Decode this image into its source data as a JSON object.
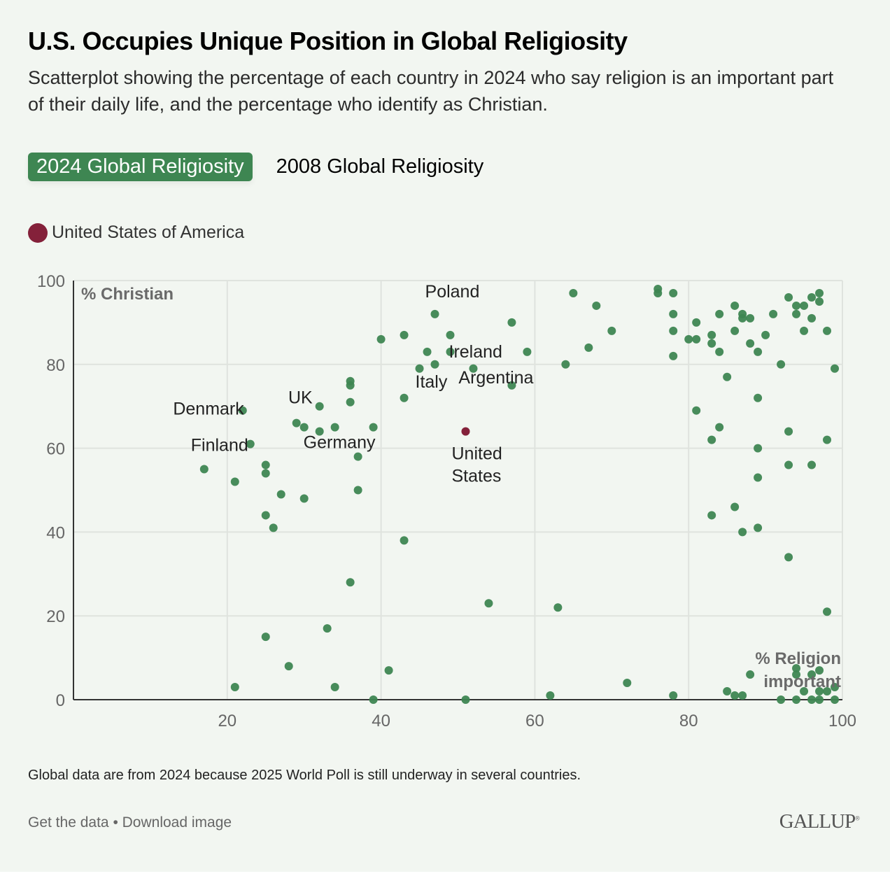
{
  "header": {
    "title": "U.S. Occupies Unique Position in Global Religiosity",
    "subtitle": "Scatterplot showing the percentage of each country in 2024 who say religion is an important part of their daily life, and the percentage who identify as Christian."
  },
  "tabs": [
    {
      "label": "2024 Global Religiosity",
      "active": true
    },
    {
      "label": "2008 Global Religiosity",
      "active": false
    }
  ],
  "legend": {
    "label": "United States of America",
    "color": "#84213a"
  },
  "colors": {
    "point": "#3e8652",
    "highlight": "#84213a",
    "tab_active": "#3e8652"
  },
  "chart_data": {
    "type": "scatter",
    "title": "U.S. Occupies Unique Position in Global Religiosity",
    "xlabel": "% Religion important",
    "ylabel": "% Christian",
    "xlim": [
      0,
      100
    ],
    "ylim": [
      0,
      100
    ],
    "xticks": [
      20,
      40,
      60,
      80,
      100
    ],
    "yticks": [
      0,
      20,
      40,
      60,
      80,
      100
    ],
    "grid": true,
    "series": [
      {
        "name": "Countries",
        "points": [
          [
            17,
            55
          ],
          [
            21,
            52
          ],
          [
            21,
            3
          ],
          [
            22,
            69
          ],
          [
            23,
            61
          ],
          [
            25,
            56
          ],
          [
            25,
            54
          ],
          [
            25,
            44
          ],
          [
            25,
            15
          ],
          [
            26,
            41
          ],
          [
            27,
            49
          ],
          [
            28,
            8
          ],
          [
            29,
            66
          ],
          [
            30,
            65
          ],
          [
            30,
            48
          ],
          [
            32,
            70
          ],
          [
            32,
            64
          ],
          [
            33,
            17
          ],
          [
            34,
            65
          ],
          [
            34,
            3
          ],
          [
            36,
            76
          ],
          [
            36,
            75
          ],
          [
            36,
            71
          ],
          [
            36,
            28
          ],
          [
            37,
            58
          ],
          [
            37,
            50
          ],
          [
            39,
            65
          ],
          [
            39,
            0
          ],
          [
            40,
            86
          ],
          [
            41,
            7
          ],
          [
            43,
            87
          ],
          [
            43,
            72
          ],
          [
            43,
            38
          ],
          [
            45,
            79
          ],
          [
            46,
            83
          ],
          [
            47,
            92
          ],
          [
            47,
            80
          ],
          [
            49,
            87
          ],
          [
            49,
            83
          ],
          [
            51,
            0
          ],
          [
            52,
            79
          ],
          [
            54,
            23
          ],
          [
            57,
            90
          ],
          [
            57,
            75
          ],
          [
            59,
            83
          ],
          [
            62,
            1
          ],
          [
            63,
            22
          ],
          [
            64,
            80
          ],
          [
            65,
            97
          ],
          [
            67,
            84
          ],
          [
            68,
            94
          ],
          [
            70,
            88
          ],
          [
            72,
            4
          ],
          [
            76,
            98
          ],
          [
            76,
            97
          ],
          [
            78,
            97
          ],
          [
            78,
            92
          ],
          [
            78,
            88
          ],
          [
            78,
            82
          ],
          [
            78,
            1
          ],
          [
            80,
            86
          ],
          [
            81,
            90
          ],
          [
            81,
            86
          ],
          [
            81,
            69
          ],
          [
            83,
            87
          ],
          [
            83,
            85
          ],
          [
            83,
            62
          ],
          [
            83,
            44
          ],
          [
            84,
            92
          ],
          [
            84,
            83
          ],
          [
            84,
            65
          ],
          [
            85,
            77
          ],
          [
            85,
            2
          ],
          [
            86,
            94
          ],
          [
            86,
            88
          ],
          [
            86,
            46
          ],
          [
            86,
            1
          ],
          [
            87,
            92
          ],
          [
            87,
            91
          ],
          [
            87,
            40
          ],
          [
            87,
            1
          ],
          [
            88,
            91
          ],
          [
            88,
            85
          ],
          [
            88,
            6
          ],
          [
            89,
            83
          ],
          [
            89,
            72
          ],
          [
            89,
            60
          ],
          [
            89,
            53
          ],
          [
            89,
            41
          ],
          [
            90,
            87
          ],
          [
            91,
            92
          ],
          [
            92,
            80
          ],
          [
            92,
            0
          ],
          [
            93,
            96
          ],
          [
            93,
            64
          ],
          [
            93,
            56
          ],
          [
            93,
            34
          ],
          [
            94,
            94
          ],
          [
            94,
            92
          ],
          [
            94,
            7.5
          ],
          [
            94,
            6
          ],
          [
            94,
            0
          ],
          [
            95,
            94
          ],
          [
            95,
            88
          ],
          [
            95,
            2
          ],
          [
            96,
            96
          ],
          [
            96,
            91
          ],
          [
            96,
            56
          ],
          [
            96,
            6
          ],
          [
            96,
            0
          ],
          [
            97,
            97
          ],
          [
            97,
            95
          ],
          [
            97,
            7
          ],
          [
            97,
            2
          ],
          [
            97,
            0
          ],
          [
            98,
            88
          ],
          [
            98,
            62
          ],
          [
            98,
            21
          ],
          [
            98,
            2
          ],
          [
            99,
            79
          ],
          [
            99,
            3
          ],
          [
            99,
            0
          ]
        ]
      },
      {
        "name": "United States of America",
        "points": [
          [
            51,
            64
          ]
        ]
      }
    ],
    "annotations": [
      {
        "text": "Poland",
        "x": 47,
        "y": 92
      },
      {
        "text": "Ireland",
        "x": 49,
        "y": 83
      },
      {
        "text": "Italy",
        "x": 47,
        "y": 80
      },
      {
        "text": "Argentina",
        "x": 57,
        "y": 75
      },
      {
        "text": "Denmark",
        "x": 22,
        "y": 69
      },
      {
        "text": "UK",
        "x": 32,
        "y": 70
      },
      {
        "text": "Finland",
        "x": 23,
        "y": 61
      },
      {
        "text": "Germany",
        "x": 32,
        "y": 64
      },
      {
        "text": "United States",
        "x": 51,
        "y": 64
      }
    ]
  },
  "footer": {
    "note": "Global data are from 2024 because 2025 World Poll is still underway in several countries.",
    "get_data": "Get the data",
    "separator": "•",
    "download": "Download image",
    "logo": "GALLUP"
  }
}
